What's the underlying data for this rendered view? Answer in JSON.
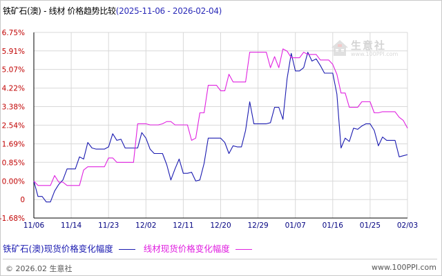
{
  "title": {
    "main": "铁矿石(澳) - 线材 价格趋势比较",
    "range": "(2025-11-06 - 2026-02-04)"
  },
  "legend": {
    "series1": "铁矿石(澳)现货价格变化幅度",
    "series2": "线材现货价格变化幅度"
  },
  "footer": {
    "left": "© 2026.02 生意社",
    "right": "www.100PPI.com"
  },
  "watermark": {
    "brand": "生意社",
    "url": "www.100PPI.com"
  },
  "colors": {
    "series1": "#1a1ab0",
    "series2": "#e020e0",
    "grid": "#d8d8d8",
    "axis": "#000000",
    "tick_label": "#c00000",
    "x_label": "#000080"
  },
  "chart_data": {
    "type": "line",
    "title": "铁矿石(澳) - 线材 价格趋势比较(2025-11-06 - 2026-02-04)",
    "xlabel": "",
    "ylabel": "",
    "x_start": "2025-11-06",
    "x_ticks": [
      "11/06",
      "11/14",
      "11/23",
      "12/02",
      "12/11",
      "12/20",
      "12/29",
      "01/07",
      "01/16",
      "01/25",
      "02/03"
    ],
    "y_ticks": [
      "6.75%",
      "5.91%",
      "5.07%",
      "4.22%",
      "3.38%",
      "2.54%",
      "1.69%",
      "0.85%",
      "0.00%",
      "0",
      "-1.68%"
    ],
    "y_tick_values": [
      6.75,
      5.91,
      5.07,
      4.22,
      3.38,
      2.54,
      1.69,
      0.85,
      0.0,
      -1.68
    ],
    "y_zero_label_value": -0.84,
    "ylim": [
      -1.68,
      6.75
    ],
    "grid": true,
    "legend_position": "bottom",
    "series": [
      {
        "name": "铁矿石(澳)现货价格变化幅度",
        "points": [
          [
            "2025-11-06",
            0.0
          ],
          [
            "2025-11-07",
            -0.7
          ],
          [
            "2025-11-08",
            -0.7
          ],
          [
            "2025-11-09",
            -0.95
          ],
          [
            "2025-11-10",
            -0.95
          ],
          [
            "2025-11-11",
            -0.45
          ],
          [
            "2025-11-12",
            -0.15
          ],
          [
            "2025-11-13",
            0.05
          ],
          [
            "2025-11-14",
            0.55
          ],
          [
            "2025-11-15",
            0.55
          ],
          [
            "2025-11-16",
            0.55
          ],
          [
            "2025-11-17",
            1.1
          ],
          [
            "2025-11-18",
            1.0
          ],
          [
            "2025-11-19",
            1.75
          ],
          [
            "2025-11-20",
            1.5
          ],
          [
            "2025-11-21",
            1.45
          ],
          [
            "2025-11-22",
            1.45
          ],
          [
            "2025-11-23",
            1.45
          ],
          [
            "2025-11-24",
            1.55
          ],
          [
            "2025-11-25",
            2.15
          ],
          [
            "2025-11-26",
            1.85
          ],
          [
            "2025-11-27",
            1.9
          ],
          [
            "2025-11-28",
            1.5
          ],
          [
            "2025-11-29",
            1.5
          ],
          [
            "2025-11-30",
            1.5
          ],
          [
            "2025-12-01",
            1.5
          ],
          [
            "2025-12-02",
            2.2
          ],
          [
            "2025-12-03",
            1.95
          ],
          [
            "2025-12-04",
            1.45
          ],
          [
            "2025-12-05",
            1.25
          ],
          [
            "2025-12-06",
            1.25
          ],
          [
            "2025-12-07",
            1.25
          ],
          [
            "2025-12-08",
            0.75
          ],
          [
            "2025-12-09",
            0.05
          ],
          [
            "2025-12-10",
            0.55
          ],
          [
            "2025-12-11",
            1.0
          ],
          [
            "2025-12-12",
            0.35
          ],
          [
            "2025-12-13",
            0.35
          ],
          [
            "2025-12-14",
            0.4
          ],
          [
            "2025-12-15",
            0.0
          ],
          [
            "2025-12-16",
            0.05
          ],
          [
            "2025-12-17",
            0.8
          ],
          [
            "2025-12-18",
            1.95
          ],
          [
            "2025-12-19",
            1.95
          ],
          [
            "2025-12-20",
            1.95
          ],
          [
            "2025-12-21",
            1.95
          ],
          [
            "2025-12-22",
            1.75
          ],
          [
            "2025-12-23",
            1.25
          ],
          [
            "2025-12-24",
            1.6
          ],
          [
            "2025-12-25",
            1.55
          ],
          [
            "2025-12-26",
            1.55
          ],
          [
            "2025-12-27",
            2.3
          ],
          [
            "2025-12-28",
            3.6
          ],
          [
            "2025-12-29",
            2.6
          ],
          [
            "2025-12-30",
            2.6
          ],
          [
            "2025-12-31",
            2.6
          ],
          [
            "2026-01-01",
            2.6
          ],
          [
            "2026-01-02",
            2.65
          ],
          [
            "2026-01-03",
            3.35
          ],
          [
            "2026-01-04",
            3.35
          ],
          [
            "2026-01-05",
            2.8
          ],
          [
            "2026-01-06",
            4.65
          ],
          [
            "2026-01-07",
            5.8
          ],
          [
            "2026-01-08",
            5.0
          ],
          [
            "2026-01-09",
            5.0
          ],
          [
            "2026-01-10",
            5.15
          ],
          [
            "2026-01-11",
            5.85
          ],
          [
            "2026-01-12",
            5.45
          ],
          [
            "2026-01-13",
            5.55
          ],
          [
            "2026-01-14",
            5.25
          ],
          [
            "2026-01-15",
            4.9
          ],
          [
            "2026-01-16",
            4.9
          ],
          [
            "2026-01-17",
            4.9
          ],
          [
            "2026-01-18",
            3.95
          ],
          [
            "2026-01-19",
            1.5
          ],
          [
            "2026-01-20",
            1.95
          ],
          [
            "2026-01-21",
            1.8
          ],
          [
            "2026-01-22",
            2.4
          ],
          [
            "2026-01-23",
            2.35
          ],
          [
            "2026-01-24",
            2.5
          ],
          [
            "2026-01-25",
            2.6
          ],
          [
            "2026-01-26",
            2.6
          ],
          [
            "2026-01-27",
            2.3
          ],
          [
            "2026-01-28",
            1.6
          ],
          [
            "2026-01-29",
            2.0
          ],
          [
            "2026-01-30",
            1.85
          ],
          [
            "2026-01-31",
            1.85
          ],
          [
            "2026-02-01",
            1.85
          ],
          [
            "2026-02-02",
            1.1
          ],
          [
            "2026-02-03",
            1.15
          ],
          [
            "2026-02-04",
            1.2
          ]
        ]
      },
      {
        "name": "线材现货价格变化幅度",
        "points": [
          [
            "2025-11-06",
            0.0
          ],
          [
            "2025-11-07",
            -0.2
          ],
          [
            "2025-11-08",
            -0.2
          ],
          [
            "2025-11-09",
            -0.2
          ],
          [
            "2025-11-10",
            -0.2
          ],
          [
            "2025-11-11",
            0.25
          ],
          [
            "2025-11-12",
            -0.05
          ],
          [
            "2025-11-13",
            -0.05
          ],
          [
            "2025-11-14",
            -0.2
          ],
          [
            "2025-11-15",
            -0.2
          ],
          [
            "2025-11-16",
            -0.2
          ],
          [
            "2025-11-17",
            -0.2
          ],
          [
            "2025-11-18",
            0.5
          ],
          [
            "2025-11-19",
            0.65
          ],
          [
            "2025-11-20",
            0.65
          ],
          [
            "2025-11-21",
            0.65
          ],
          [
            "2025-11-22",
            0.65
          ],
          [
            "2025-11-23",
            0.65
          ],
          [
            "2025-11-24",
            1.05
          ],
          [
            "2025-11-25",
            1.05
          ],
          [
            "2025-11-26",
            0.85
          ],
          [
            "2025-11-27",
            0.85
          ],
          [
            "2025-11-28",
            0.85
          ],
          [
            "2025-11-29",
            0.85
          ],
          [
            "2025-11-30",
            0.85
          ],
          [
            "2025-12-01",
            2.6
          ],
          [
            "2025-12-02",
            2.6
          ],
          [
            "2025-12-03",
            2.6
          ],
          [
            "2025-12-04",
            2.55
          ],
          [
            "2025-12-05",
            2.55
          ],
          [
            "2025-12-06",
            2.55
          ],
          [
            "2025-12-07",
            2.6
          ],
          [
            "2025-12-08",
            2.7
          ],
          [
            "2025-12-09",
            2.7
          ],
          [
            "2025-12-10",
            2.55
          ],
          [
            "2025-12-11",
            2.55
          ],
          [
            "2025-12-12",
            2.55
          ],
          [
            "2025-12-13",
            2.55
          ],
          [
            "2025-12-14",
            1.85
          ],
          [
            "2025-12-15",
            1.95
          ],
          [
            "2025-12-16",
            3.1
          ],
          [
            "2025-12-17",
            3.1
          ],
          [
            "2025-12-18",
            4.35
          ],
          [
            "2025-12-19",
            4.35
          ],
          [
            "2025-12-20",
            4.35
          ],
          [
            "2025-12-21",
            4.1
          ],
          [
            "2025-12-22",
            4.1
          ],
          [
            "2025-12-23",
            4.85
          ],
          [
            "2025-12-24",
            4.5
          ],
          [
            "2025-12-25",
            4.5
          ],
          [
            "2025-12-26",
            4.5
          ],
          [
            "2025-12-27",
            4.5
          ],
          [
            "2025-12-28",
            5.85
          ],
          [
            "2025-12-29",
            5.85
          ],
          [
            "2025-12-30",
            5.85
          ],
          [
            "2025-12-31",
            5.85
          ],
          [
            "2026-01-01",
            5.85
          ],
          [
            "2026-01-02",
            5.15
          ],
          [
            "2026-01-03",
            5.65
          ],
          [
            "2026-01-04",
            5.15
          ],
          [
            "2026-01-05",
            6.0
          ],
          [
            "2026-01-06",
            5.9
          ],
          [
            "2026-01-07",
            5.6
          ],
          [
            "2026-01-08",
            5.6
          ],
          [
            "2026-01-09",
            5.6
          ],
          [
            "2026-01-10",
            5.85
          ],
          [
            "2026-01-11",
            5.75
          ],
          [
            "2026-01-12",
            5.75
          ],
          [
            "2026-01-13",
            5.75
          ],
          [
            "2026-01-14",
            5.5
          ],
          [
            "2026-01-15",
            5.5
          ],
          [
            "2026-01-16",
            5.5
          ],
          [
            "2026-01-17",
            5.3
          ],
          [
            "2026-01-18",
            4.85
          ],
          [
            "2026-01-19",
            4.0
          ],
          [
            "2026-01-20",
            4.0
          ],
          [
            "2026-01-21",
            3.35
          ],
          [
            "2026-01-22",
            3.35
          ],
          [
            "2026-01-23",
            3.35
          ],
          [
            "2026-01-24",
            3.6
          ],
          [
            "2026-01-25",
            3.6
          ],
          [
            "2026-01-26",
            3.6
          ],
          [
            "2026-01-27",
            3.1
          ],
          [
            "2026-01-28",
            3.1
          ],
          [
            "2026-01-29",
            3.15
          ],
          [
            "2026-01-30",
            3.15
          ],
          [
            "2026-01-31",
            3.15
          ],
          [
            "2026-02-01",
            3.15
          ],
          [
            "2026-02-02",
            2.9
          ],
          [
            "2026-02-03",
            2.75
          ],
          [
            "2026-02-04",
            2.4
          ]
        ]
      }
    ]
  }
}
